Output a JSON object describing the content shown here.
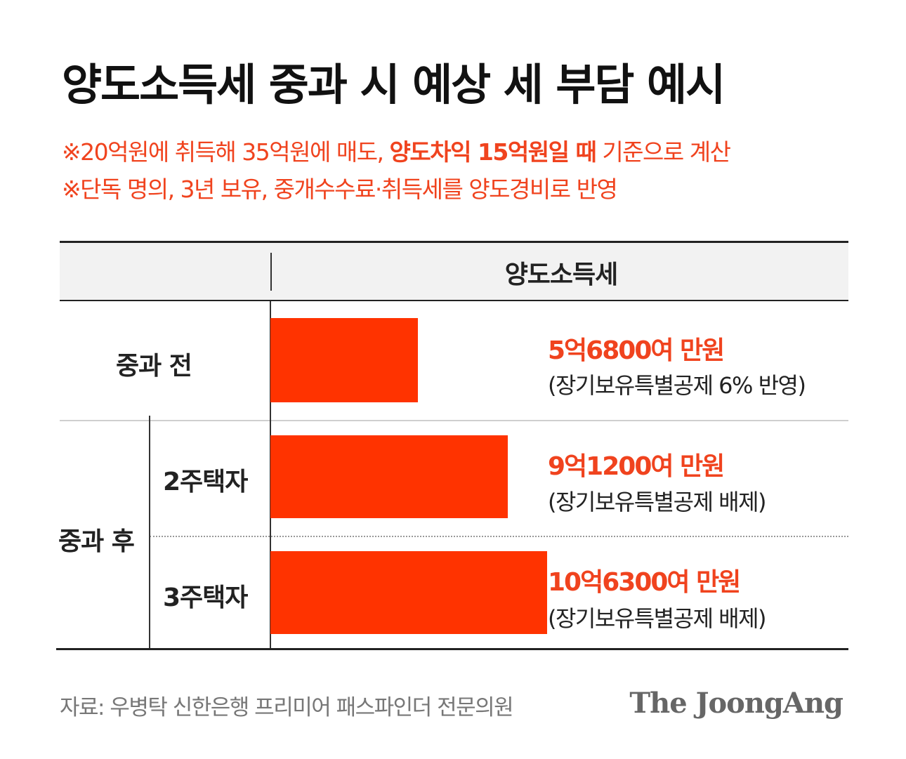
{
  "title": "양도소득세 중과 시 예상 세 부담 예시",
  "notes": {
    "line1_pre": "※20억원에 취득해 35억원에 매도, ",
    "line1_bold": "양도차익 15억원일 때",
    "line1_post": " 기준으로 계산",
    "line2": "※단독 명의, 3년 보유, 중개수수료·취득세를 양도경비로 반영"
  },
  "table": {
    "header": "양도소득세",
    "group_before": "중과 전",
    "group_after": "중과 후",
    "sub_2": "2주택자",
    "sub_3": "3주택자"
  },
  "chart_data": {
    "type": "bar",
    "orientation": "horizontal",
    "categories": [
      "중과 전",
      "2주택자",
      "3주택자"
    ],
    "values": [
      56800,
      91200,
      106300
    ],
    "value_labels": [
      "5억6800여 만원",
      "9억1200여 만원",
      "10억6300여 만원"
    ],
    "sub_labels": [
      "(장기보유특별공제 6% 반영)",
      "(장기보유특별공제 배제)",
      "(장기보유특별공제 배제)"
    ],
    "title": "양도소득세 중과 시 예상 세 부담 예시",
    "xlabel": "",
    "ylabel": "",
    "xlim": [
      0,
      121000
    ],
    "grid": false,
    "bar_color": "#ff3300"
  },
  "colors": {
    "accent": "#f0431e",
    "bar": "#ff3300",
    "text": "#111111",
    "source": "#777777"
  },
  "footer": {
    "source": "자료: 우병탁 신한은행 프리미어 패스파인더 전문의원",
    "logo": "The JoongAng"
  }
}
